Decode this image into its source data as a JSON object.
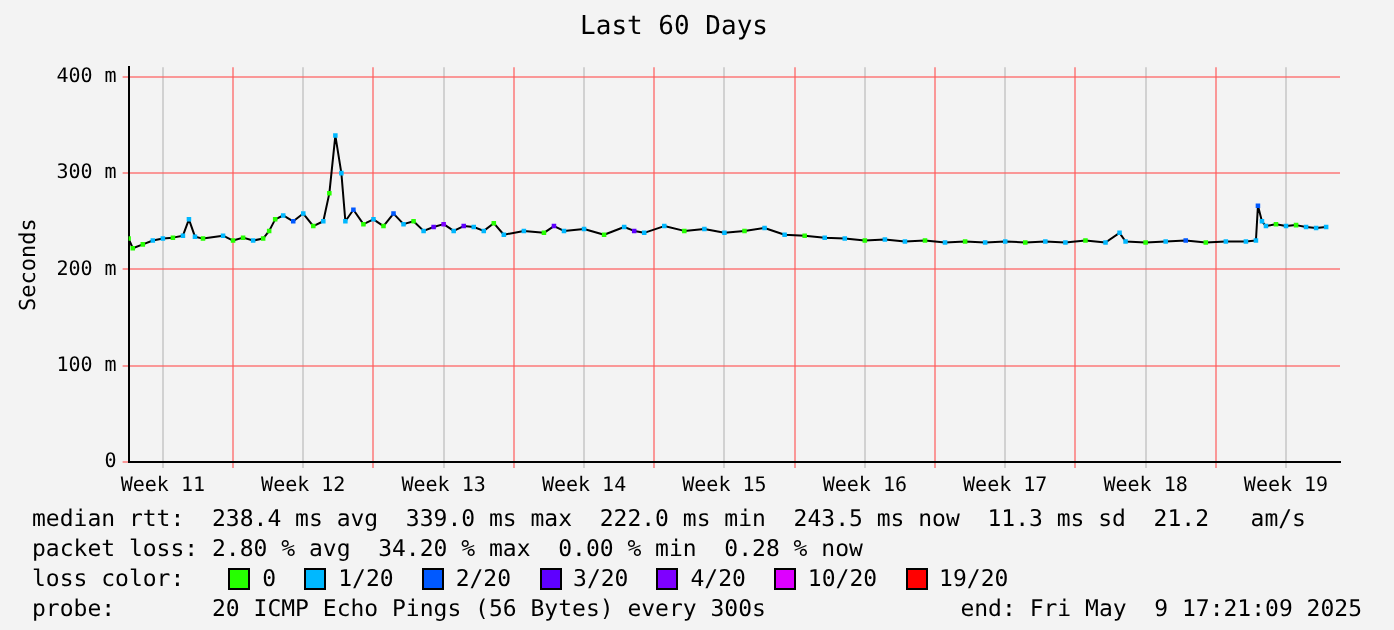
{
  "chart_data": {
    "type": "line",
    "title": "Last 60 Days",
    "ylabel": "Seconds",
    "xlim": [
      "2025-03-10T19:00",
      "2025-05-10T04:36"
    ],
    "xticks": [
      {
        "value": "2025-03-12T12:00",
        "label": "Week 11"
      },
      {
        "value": "2025-03-16",
        "label": null
      },
      {
        "value": "2025-03-19T12:00",
        "label": "Week 12"
      },
      {
        "value": "2025-03-23",
        "label": null
      },
      {
        "value": "2025-03-26T12:00",
        "label": "Week 13"
      },
      {
        "value": "2025-03-30",
        "label": null
      },
      {
        "value": "2025-04-02T12:00",
        "label": "Week 14"
      },
      {
        "value": "2025-04-06",
        "label": null
      },
      {
        "value": "2025-04-09T12:00",
        "label": "Week 15"
      },
      {
        "value": "2025-04-13",
        "label": null
      },
      {
        "value": "2025-04-16T12:00",
        "label": "Week 16"
      },
      {
        "value": "2025-04-20",
        "label": null
      },
      {
        "value": "2025-04-23T12:00",
        "label": "Week 17"
      },
      {
        "value": "2025-04-27",
        "label": null
      },
      {
        "value": "2025-04-30T12:00",
        "label": "Week 18"
      },
      {
        "value": "2025-05-04",
        "label": null
      },
      {
        "value": "2025-05-07T12:00",
        "label": "Week 19"
      }
    ],
    "ylim": [
      0,
      410
    ],
    "yticks": [
      0,
      {
        "value": 100,
        "label": "100 m"
      },
      {
        "value": 200,
        "label": "200 m"
      },
      {
        "value": 300,
        "label": "300 m"
      },
      {
        "value": 400,
        "label": "400 m"
      }
    ],
    "grid": true,
    "legend": "bottom",
    "legend_title": "loss color:",
    "series": [
      {
        "color": "#000000",
        "x": [
          "2025-03-10T19:00",
          "2025-03-11T00:00",
          "2025-03-11T12:00",
          "2025-03-12T00:00",
          "2025-03-12T12:00",
          "2025-03-13T00:00",
          "2025-03-13T12:00",
          "2025-03-13T19:12",
          "2025-03-14T02:24",
          "2025-03-14T12:00",
          "2025-03-15T12:00",
          "2025-03-16T00:00",
          "2025-03-16T12:00",
          "2025-03-17T00:00",
          "2025-03-17T12:00",
          "2025-03-17T19:12",
          "2025-03-18T02:24",
          "2025-03-18T12:00",
          "2025-03-19T00:00",
          "2025-03-19T12:00",
          "2025-03-20T00:00",
          "2025-03-20T12:00",
          "2025-03-20T19:12",
          "2025-03-21T02:24",
          "2025-03-21T09:36",
          "2025-03-21T14:24",
          "2025-03-22T00:00",
          "2025-03-22T12:00",
          "2025-03-23T00:00",
          "2025-03-23T12:00",
          "2025-03-24T00:00",
          "2025-03-24T12:00",
          "2025-03-25T00:00",
          "2025-03-25T12:00",
          "2025-03-26T00:00",
          "2025-03-26T12:00",
          "2025-03-27T00:00",
          "2025-03-27T12:00",
          "2025-03-28T00:00",
          "2025-03-28T12:00",
          "2025-03-29T00:00",
          "2025-03-29T12:00",
          "2025-03-30T12:00",
          "2025-03-31T12:00",
          "2025-04-01T00:00",
          "2025-04-01T12:00",
          "2025-04-02T12:00",
          "2025-04-03T12:00",
          "2025-04-04T12:00",
          "2025-04-05T00:00",
          "2025-04-05T12:00",
          "2025-04-06T12:00",
          "2025-04-07T12:00",
          "2025-04-08T12:00",
          "2025-04-09T12:00",
          "2025-04-10T12:00",
          "2025-04-11T12:00",
          "2025-04-12T12:00",
          "2025-04-13T12:00",
          "2025-04-14T12:00",
          "2025-04-15T12:00",
          "2025-04-16T12:00",
          "2025-04-17T12:00",
          "2025-04-18T12:00",
          "2025-04-19T12:00",
          "2025-04-20T12:00",
          "2025-04-21T12:00",
          "2025-04-22T12:00",
          "2025-04-23T12:00",
          "2025-04-24T12:00",
          "2025-04-25T12:00",
          "2025-04-26T12:00",
          "2025-04-27T12:00",
          "2025-04-28T12:00",
          "2025-04-29T04:48",
          "2025-04-29T12:00",
          "2025-04-30T12:00",
          "2025-05-01T12:00",
          "2025-05-02T12:00",
          "2025-05-03T12:00",
          "2025-05-04T12:00",
          "2025-05-05T12:00",
          "2025-05-06T00:00",
          "2025-05-06T02:24",
          "2025-05-06T07:12",
          "2025-05-06T12:00",
          "2025-05-07T00:00",
          "2025-05-07T12:00",
          "2025-05-08T00:00",
          "2025-05-08T12:00",
          "2025-05-09T00:00",
          "2025-05-09T12:00"
        ],
        "values": [
          232,
          222,
          226,
          230,
          232,
          233,
          235,
          252,
          234,
          232,
          235,
          230,
          233,
          230,
          232,
          240,
          252,
          256,
          250,
          258,
          245,
          250,
          279,
          339,
          300,
          250,
          262,
          247,
          252,
          245,
          258,
          247,
          250,
          240,
          244,
          247,
          240,
          245,
          244,
          240,
          248,
          236,
          240,
          238,
          245,
          240,
          242,
          236,
          244,
          240,
          238,
          245,
          240,
          242,
          238,
          240,
          243,
          236,
          235,
          233,
          232,
          230,
          231,
          229,
          230,
          228,
          229,
          228,
          229,
          228,
          229,
          228,
          230,
          228,
          238,
          229,
          228,
          229,
          230,
          228,
          229,
          229,
          230,
          266,
          250,
          245,
          247,
          245,
          246,
          244,
          243,
          244
        ]
      },
      {
        "type": "scatter",
        "marker": "square",
        "name": "0",
        "color": "#26ff00",
        "x": [
          "2025-03-10T19:00",
          "2025-03-11T00:00",
          "2025-03-11T12:00",
          "2025-03-13T00:00",
          "2025-03-14T12:00",
          "2025-03-16T00:00",
          "2025-03-16T12:00",
          "2025-03-17T12:00",
          "2025-03-17T19:12",
          "2025-03-18T02:24",
          "2025-03-20T00:00",
          "2025-03-20T19:12",
          "2025-03-22T12:00",
          "2025-03-23T12:00",
          "2025-03-25T00:00",
          "2025-03-29T00:00",
          "2025-03-31T12:00",
          "2025-04-03T12:00",
          "2025-04-07T12:00",
          "2025-04-10T12:00",
          "2025-04-13T12:00",
          "2025-04-16T12:00",
          "2025-04-19T12:00",
          "2025-04-21T12:00",
          "2025-04-24T12:00",
          "2025-04-27T12:00",
          "2025-04-30T12:00",
          "2025-05-03T12:00",
          "2025-05-07T00:00",
          "2025-05-08T00:00"
        ],
        "values": [
          232,
          222,
          226,
          233,
          232,
          230,
          233,
          232,
          240,
          252,
          245,
          279,
          247,
          245,
          250,
          248,
          238,
          236,
          240,
          240,
          235,
          230,
          230,
          229,
          228,
          230,
          228,
          228,
          247,
          246
        ]
      },
      {
        "type": "scatter",
        "marker": "square",
        "name": "1/20",
        "color": "#00b8ff",
        "x": [
          "2025-03-12T00:00",
          "2025-03-12T12:00",
          "2025-03-13T12:00",
          "2025-03-13T19:12",
          "2025-03-14T02:24",
          "2025-03-15T12:00",
          "2025-03-17T00:00",
          "2025-03-18T12:00",
          "2025-03-19T12:00",
          "2025-03-20T12:00",
          "2025-03-21T02:24",
          "2025-03-21T09:36",
          "2025-03-21T14:24",
          "2025-03-23T00:00",
          "2025-03-24T12:00",
          "2025-03-25T12:00",
          "2025-03-27T00:00",
          "2025-03-28T00:00",
          "2025-03-28T12:00",
          "2025-03-29T12:00",
          "2025-03-30T12:00",
          "2025-04-01T12:00",
          "2025-04-02T12:00",
          "2025-04-04T12:00",
          "2025-04-05T12:00",
          "2025-04-06T12:00",
          "2025-04-08T12:00",
          "2025-04-09T12:00",
          "2025-04-11T12:00",
          "2025-04-12T12:00",
          "2025-04-14T12:00",
          "2025-04-15T12:00",
          "2025-04-17T12:00",
          "2025-04-18T12:00",
          "2025-04-20T12:00",
          "2025-04-22T12:00",
          "2025-04-23T12:00",
          "2025-04-25T12:00",
          "2025-04-26T12:00",
          "2025-04-28T12:00",
          "2025-04-29T04:48",
          "2025-04-29T12:00",
          "2025-05-01T12:00",
          "2025-05-04T12:00",
          "2025-05-05T12:00",
          "2025-05-06T00:00",
          "2025-05-06T07:12",
          "2025-05-06T12:00",
          "2025-05-07T12:00",
          "2025-05-08T12:00",
          "2025-05-09T00:00",
          "2025-05-09T12:00"
        ],
        "values": [
          230,
          232,
          235,
          252,
          234,
          235,
          230,
          256,
          258,
          250,
          339,
          300,
          250,
          252,
          247,
          240,
          240,
          244,
          240,
          236,
          240,
          240,
          242,
          244,
          238,
          245,
          242,
          238,
          243,
          236,
          233,
          232,
          231,
          229,
          228,
          228,
          229,
          229,
          228,
          228,
          238,
          229,
          229,
          229,
          229,
          230,
          250,
          245,
          245,
          244,
          243,
          244
        ]
      },
      {
        "type": "scatter",
        "marker": "square",
        "name": "2/20",
        "color": "#0059ff",
        "x": [
          "2025-03-19T00:00",
          "2025-03-22T00:00",
          "2025-03-24T00:00",
          "2025-05-02T12:00",
          "2025-05-06T02:24"
        ],
        "values": [
          250,
          262,
          258,
          230,
          266
        ]
      },
      {
        "type": "scatter",
        "marker": "square",
        "name": "3/20",
        "color": "#5e00ff",
        "x": [
          "2025-03-26T00:00",
          "2025-03-27T12:00",
          "2025-04-01T00:00",
          "2025-04-05T00:00"
        ],
        "values": [
          244,
          245,
          245,
          240
        ]
      },
      {
        "type": "scatter",
        "marker": "square",
        "name": "4/20",
        "color": "#7e00ff",
        "x": [
          "2025-03-26T12:00"
        ],
        "values": [
          247
        ]
      },
      {
        "type": "scatter",
        "marker": "square",
        "name": "10/20",
        "color": "#dd00ff"
      },
      {
        "type": "scatter",
        "marker": "square",
        "name": "19/20",
        "color": "#ff0000"
      }
    ],
    "annotations": [
      "median rtt:  238.4 ms avg  339.0 ms max  222.0 ms min  243.5 ms now  11.3 ms sd  21.2   am/s",
      "packet loss: 2.80 % avg  34.20 % max  0.00 % min  0.28 % now",
      "probe:       20 ICMP Echo Pings (56 Bytes) every 300s",
      "end: Fri May  9 17:21:09 2025"
    ]
  }
}
